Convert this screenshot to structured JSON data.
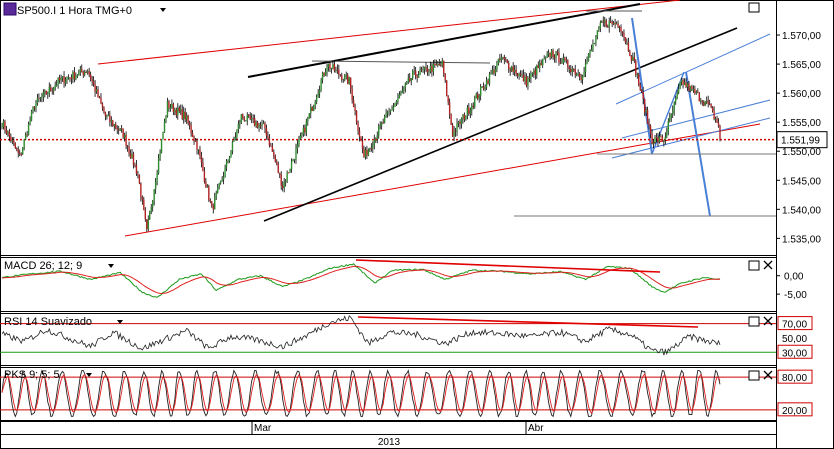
{
  "chart_data": {
    "type": "candlestick",
    "main": {
      "symbol_label": "SP500.I 1 Hora TMG+0",
      "yaxis_ticks": [
        "1.570,00",
        "1.565,00",
        "1.560,00",
        "1.555,00",
        "1.550,00",
        "1.545,00",
        "1.540,00",
        "1.535,00"
      ],
      "ytick_values": [
        1570,
        1565,
        1560,
        1555,
        1550,
        1545,
        1540,
        1535
      ],
      "ylim": [
        1533,
        1575
      ],
      "current_value": 1551.99,
      "current_label": "1.551,99",
      "series_anchors": [
        [
          0,
          1555
        ],
        [
          12,
          1549
        ],
        [
          22,
          1558
        ],
        [
          38,
          1562
        ],
        [
          58,
          1564
        ],
        [
          70,
          1556
        ],
        [
          82,
          1553
        ],
        [
          92,
          1546
        ],
        [
          98,
          1536
        ],
        [
          112,
          1558
        ],
        [
          124,
          1556
        ],
        [
          132,
          1551
        ],
        [
          142,
          1540
        ],
        [
          150,
          1546
        ],
        [
          162,
          1556
        ],
        [
          178,
          1554
        ],
        [
          190,
          1544
        ],
        [
          205,
          1554
        ],
        [
          220,
          1565
        ],
        [
          235,
          1562
        ],
        [
          245,
          1549
        ],
        [
          258,
          1555
        ],
        [
          278,
          1563
        ],
        [
          298,
          1565
        ],
        [
          305,
          1553
        ],
        [
          318,
          1558
        ],
        [
          338,
          1566
        ],
        [
          355,
          1562
        ],
        [
          372,
          1567
        ],
        [
          392,
          1563
        ],
        [
          406,
          1572
        ],
        [
          418,
          1572
        ],
        [
          428,
          1565
        ],
        [
          440,
          1552
        ],
        [
          448,
          1552
        ],
        [
          460,
          1562
        ],
        [
          478,
          1558
        ],
        [
          486,
          1554
        ]
      ],
      "trendlines": [
        {
          "points": [
            [
              1530,
              0.13
            ],
            [
              1538,
              0.87
            ]
          ],
          "color": "#000000"
        }
      ]
    },
    "x_labels": [
      "Mar",
      "Abr"
    ],
    "year_label": "2013",
    "macd": {
      "label": "MACD 26; 12; 9",
      "ticks": [
        "0,00",
        "-5,00"
      ],
      "ytick_values": [
        0,
        -5
      ],
      "ylim": [
        -8.5,
        4
      ],
      "anchors": [
        [
          0,
          -0.5
        ],
        [
          20,
          0.5
        ],
        [
          40,
          1.2
        ],
        [
          60,
          -1
        ],
        [
          80,
          0.8
        ],
        [
          95,
          -4.5
        ],
        [
          105,
          -6
        ],
        [
          120,
          -1
        ],
        [
          135,
          0.5
        ],
        [
          145,
          -4
        ],
        [
          160,
          -1
        ],
        [
          175,
          0
        ],
        [
          190,
          -3
        ],
        [
          205,
          -1
        ],
        [
          222,
          2
        ],
        [
          238,
          3.2
        ],
        [
          252,
          -2
        ],
        [
          265,
          1.5
        ],
        [
          285,
          1.7
        ],
        [
          300,
          -1
        ],
        [
          318,
          1.5
        ],
        [
          338,
          1.2
        ],
        [
          358,
          0.5
        ],
        [
          378,
          1.1
        ],
        [
          395,
          -1
        ],
        [
          410,
          2.5
        ],
        [
          425,
          2
        ],
        [
          440,
          -3
        ],
        [
          448,
          -4.5
        ],
        [
          460,
          -2
        ],
        [
          475,
          -0.5
        ],
        [
          486,
          -1
        ]
      ]
    },
    "rsi": {
      "label": "RSI 14 Suavizado",
      "ticks": [
        "70,00",
        "50,00",
        "30,00"
      ],
      "ytick_values": [
        70,
        50,
        30
      ],
      "ylim": [
        15,
        82
      ],
      "levels": [
        70,
        30
      ],
      "anchors": [
        [
          0,
          55
        ],
        [
          15,
          45
        ],
        [
          30,
          62
        ],
        [
          45,
          50
        ],
        [
          60,
          38
        ],
        [
          75,
          58
        ],
        [
          95,
          35
        ],
        [
          110,
          48
        ],
        [
          125,
          60
        ],
        [
          140,
          35
        ],
        [
          155,
          52
        ],
        [
          170,
          48
        ],
        [
          190,
          38
        ],
        [
          205,
          52
        ],
        [
          222,
          72
        ],
        [
          236,
          78
        ],
        [
          248,
          42
        ],
        [
          262,
          58
        ],
        [
          280,
          55
        ],
        [
          300,
          42
        ],
        [
          318,
          58
        ],
        [
          338,
          56
        ],
        [
          358,
          52
        ],
        [
          378,
          58
        ],
        [
          395,
          45
        ],
        [
          410,
          62
        ],
        [
          425,
          55
        ],
        [
          440,
          32
        ],
        [
          450,
          30
        ],
        [
          465,
          52
        ],
        [
          478,
          45
        ],
        [
          486,
          42
        ]
      ]
    },
    "pks": {
      "label": "PKS 9; 5; 5",
      "ticks": [
        "80,00",
        "20,00"
      ],
      "ytick_values": [
        80,
        20
      ],
      "ylim": [
        5,
        95
      ],
      "levels": [
        80,
        20
      ],
      "period": 13
    }
  },
  "icons": [
    "square-icon",
    "close-icon"
  ],
  "colors": {
    "bull": "#2e8b2e",
    "bear": "#b22222",
    "trend_red": "#e00000",
    "trend_blue": "#4a7fd6",
    "dotted": "#d00000",
    "macd_line": "#1a9a1a",
    "signal": "#e02020"
  }
}
